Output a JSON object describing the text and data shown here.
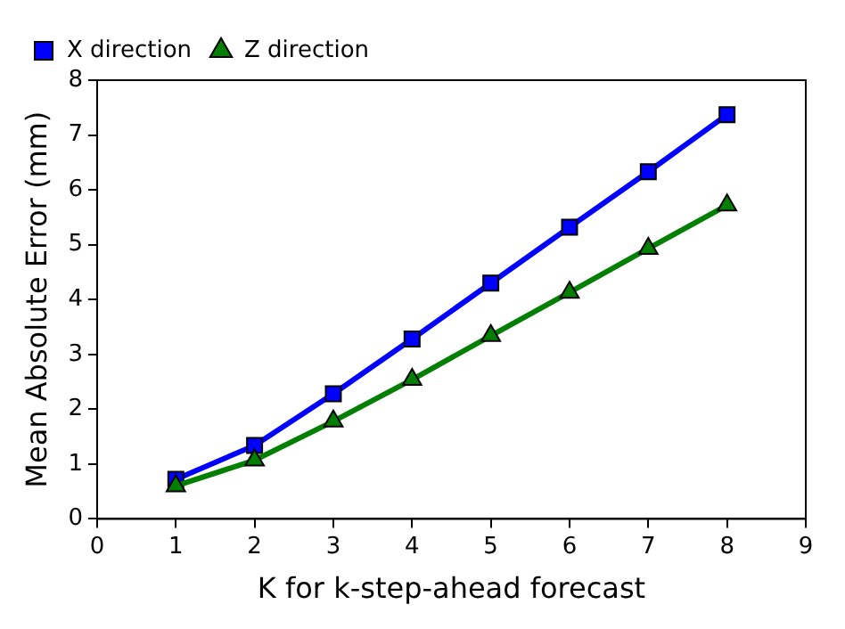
{
  "chart_data": {
    "type": "line",
    "xlabel": "K for k-step-ahead forecast",
    "ylabel": "Mean Absolute Error (mm)",
    "x": [
      1,
      2,
      3,
      4,
      5,
      6,
      7,
      8
    ],
    "series": [
      {
        "name": "X direction",
        "color": "#0000ff",
        "marker": "square",
        "values": [
          0.72,
          1.34,
          2.28,
          3.28,
          4.3,
          5.32,
          6.33,
          7.37
        ]
      },
      {
        "name": "Z direction",
        "color": "#007f00",
        "marker": "triangle",
        "values": [
          0.6,
          1.07,
          1.78,
          2.54,
          3.34,
          4.13,
          4.93,
          5.72
        ]
      }
    ],
    "xlim": [
      0,
      9
    ],
    "xticks": [
      0,
      1,
      2,
      3,
      4,
      5,
      6,
      7,
      8,
      9
    ],
    "ylim": [
      0,
      8
    ],
    "yticks": [
      0,
      1,
      2,
      3,
      4,
      5,
      6,
      7,
      8
    ],
    "grid": false,
    "legend": "top left",
    "line_style": "solid"
  }
}
